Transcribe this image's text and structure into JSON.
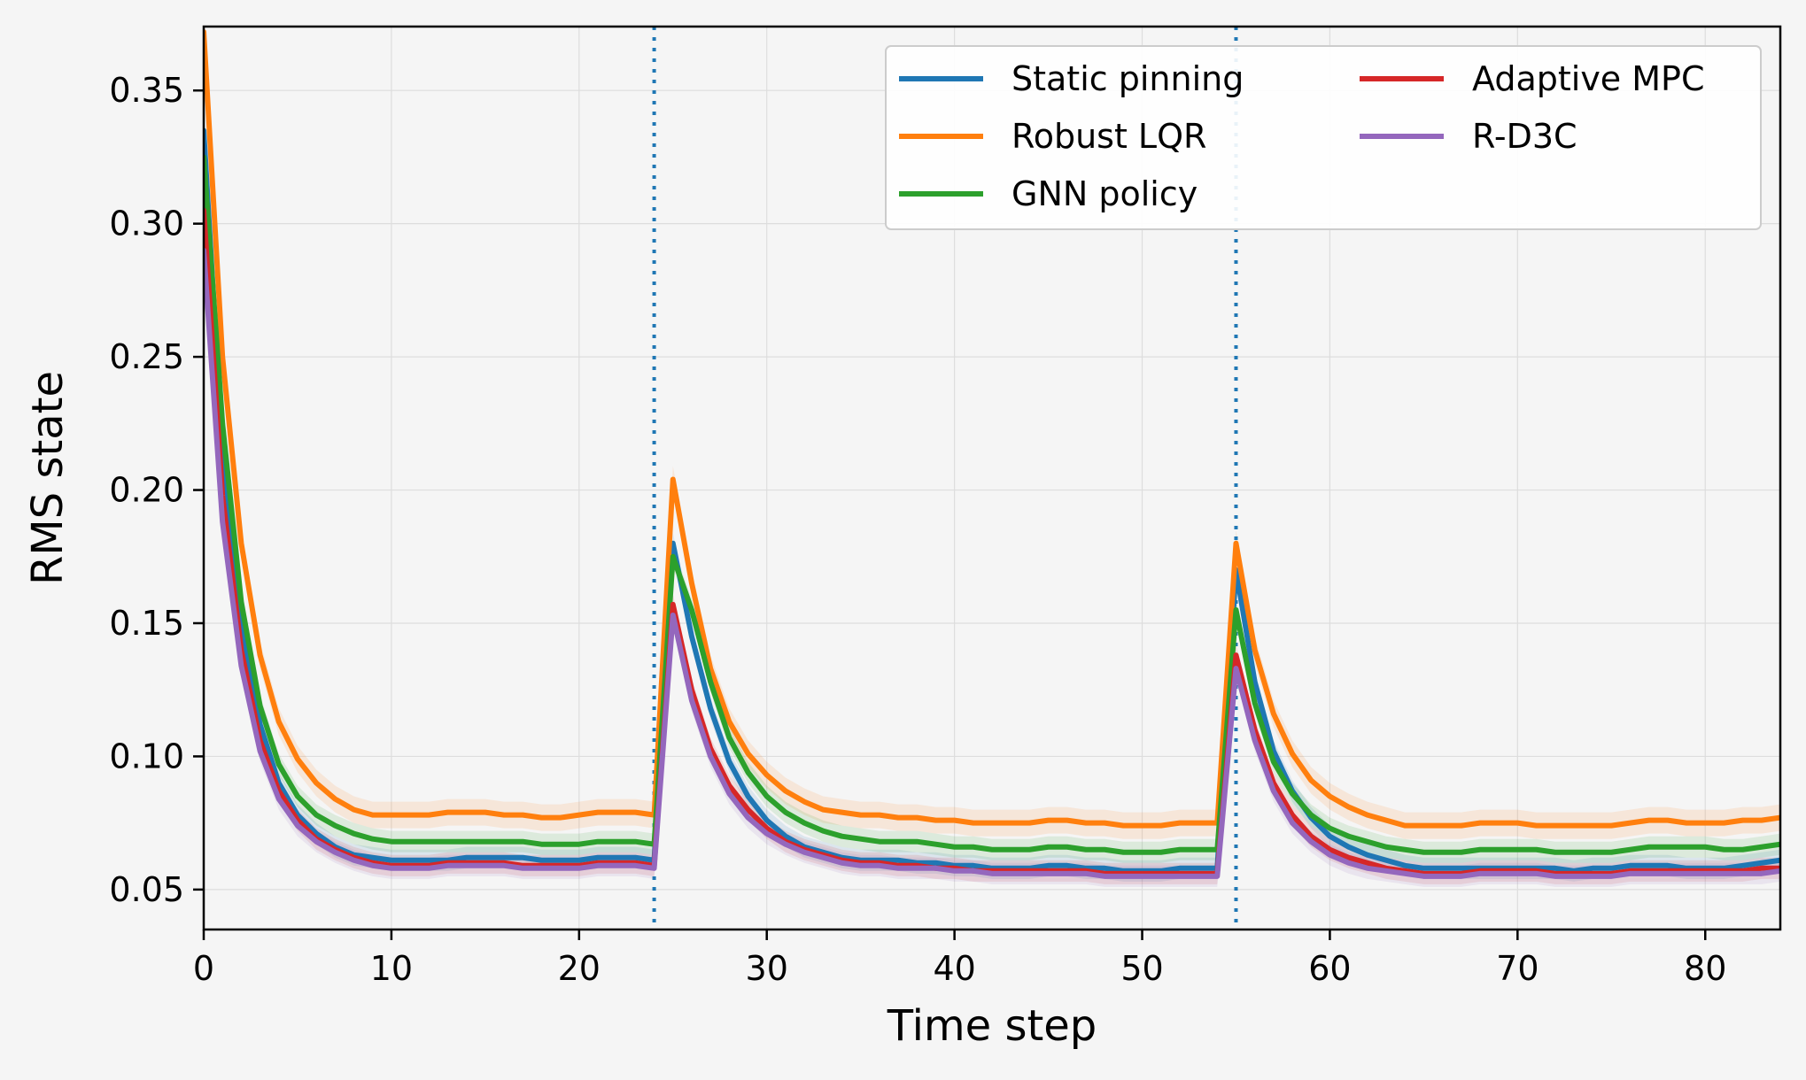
{
  "chart_data": {
    "type": "line",
    "xlabel": "Time step",
    "ylabel": "RMS state",
    "xlim": [
      0,
      84
    ],
    "ylim": [
      0.035,
      0.374
    ],
    "xticks": [
      0,
      10,
      20,
      30,
      40,
      50,
      60,
      70,
      80
    ],
    "xtick_labels": [
      "0",
      "10",
      "20",
      "30",
      "40",
      "50",
      "60",
      "70",
      "80"
    ],
    "yticks": [
      0.05,
      0.1,
      0.15,
      0.2,
      0.25,
      0.3,
      0.35
    ],
    "ytick_labels": [
      "0.05",
      "0.10",
      "0.15",
      "0.20",
      "0.25",
      "0.30",
      "0.35"
    ],
    "grid": true,
    "legend_position": "top-right",
    "legend_columns": 2,
    "vlines": [
      24,
      55
    ],
    "vline_style": "dotted",
    "vline_color": "#1f77b4",
    "series": [
      {
        "name": "Static pinning",
        "color": "#1f77b4",
        "band": 0.004,
        "x": [
          0,
          1,
          2,
          3,
          4,
          5,
          6,
          7,
          8,
          9,
          10,
          11,
          12,
          13,
          14,
          15,
          16,
          17,
          18,
          19,
          20,
          21,
          22,
          23,
          24,
          25,
          26,
          27,
          28,
          29,
          30,
          31,
          32,
          33,
          34,
          35,
          36,
          37,
          38,
          39,
          40,
          41,
          42,
          43,
          44,
          45,
          46,
          47,
          48,
          49,
          50,
          51,
          52,
          53,
          54,
          55,
          56,
          57,
          58,
          59,
          60,
          61,
          62,
          63,
          64,
          65,
          66,
          67,
          68,
          69,
          70,
          71,
          72,
          73,
          74,
          75,
          76,
          77,
          78,
          79,
          80,
          81,
          82,
          83,
          84
        ],
        "y": [
          0.335,
          0.215,
          0.15,
          0.112,
          0.09,
          0.078,
          0.071,
          0.066,
          0.063,
          0.062,
          0.061,
          0.061,
          0.061,
          0.061,
          0.062,
          0.062,
          0.062,
          0.062,
          0.061,
          0.061,
          0.061,
          0.062,
          0.062,
          0.062,
          0.061,
          0.18,
          0.145,
          0.118,
          0.098,
          0.085,
          0.076,
          0.07,
          0.066,
          0.064,
          0.062,
          0.061,
          0.061,
          0.061,
          0.06,
          0.06,
          0.059,
          0.059,
          0.058,
          0.058,
          0.058,
          0.059,
          0.059,
          0.058,
          0.058,
          0.057,
          0.057,
          0.057,
          0.058,
          0.058,
          0.058,
          0.17,
          0.128,
          0.102,
          0.087,
          0.077,
          0.07,
          0.066,
          0.063,
          0.061,
          0.059,
          0.058,
          0.058,
          0.058,
          0.058,
          0.058,
          0.058,
          0.058,
          0.058,
          0.057,
          0.058,
          0.058,
          0.059,
          0.059,
          0.059,
          0.058,
          0.058,
          0.058,
          0.059,
          0.06,
          0.061
        ]
      },
      {
        "name": "Robust LQR",
        "color": "#ff7f0e",
        "band": 0.005,
        "x": [
          0,
          1,
          2,
          3,
          4,
          5,
          6,
          7,
          8,
          9,
          10,
          11,
          12,
          13,
          14,
          15,
          16,
          17,
          18,
          19,
          20,
          21,
          22,
          23,
          24,
          25,
          26,
          27,
          28,
          29,
          30,
          31,
          32,
          33,
          34,
          35,
          36,
          37,
          38,
          39,
          40,
          41,
          42,
          43,
          44,
          45,
          46,
          47,
          48,
          49,
          50,
          51,
          52,
          53,
          54,
          55,
          56,
          57,
          58,
          59,
          60,
          61,
          62,
          63,
          64,
          65,
          66,
          67,
          68,
          69,
          70,
          71,
          72,
          73,
          74,
          75,
          76,
          77,
          78,
          79,
          80,
          81,
          82,
          83,
          84
        ],
        "y": [
          0.372,
          0.25,
          0.18,
          0.138,
          0.113,
          0.099,
          0.09,
          0.084,
          0.08,
          0.078,
          0.078,
          0.078,
          0.078,
          0.079,
          0.079,
          0.079,
          0.078,
          0.078,
          0.077,
          0.077,
          0.078,
          0.079,
          0.079,
          0.079,
          0.078,
          0.204,
          0.165,
          0.133,
          0.113,
          0.101,
          0.093,
          0.087,
          0.083,
          0.08,
          0.079,
          0.078,
          0.078,
          0.077,
          0.077,
          0.076,
          0.076,
          0.075,
          0.075,
          0.075,
          0.075,
          0.076,
          0.076,
          0.075,
          0.075,
          0.074,
          0.074,
          0.074,
          0.075,
          0.075,
          0.075,
          0.18,
          0.14,
          0.116,
          0.101,
          0.091,
          0.085,
          0.081,
          0.078,
          0.076,
          0.074,
          0.074,
          0.074,
          0.074,
          0.075,
          0.075,
          0.075,
          0.074,
          0.074,
          0.074,
          0.074,
          0.074,
          0.075,
          0.076,
          0.076,
          0.075,
          0.075,
          0.075,
          0.076,
          0.076,
          0.077
        ]
      },
      {
        "name": "GNN policy",
        "color": "#2ca02c",
        "band": 0.004,
        "x": [
          0,
          1,
          2,
          3,
          4,
          5,
          6,
          7,
          8,
          9,
          10,
          11,
          12,
          13,
          14,
          15,
          16,
          17,
          18,
          19,
          20,
          21,
          22,
          23,
          24,
          25,
          26,
          27,
          28,
          29,
          30,
          31,
          32,
          33,
          34,
          35,
          36,
          37,
          38,
          39,
          40,
          41,
          42,
          43,
          44,
          45,
          46,
          47,
          48,
          49,
          50,
          51,
          52,
          53,
          54,
          55,
          56,
          57,
          58,
          59,
          60,
          61,
          62,
          63,
          64,
          65,
          66,
          67,
          68,
          69,
          70,
          71,
          72,
          73,
          74,
          75,
          76,
          77,
          78,
          79,
          80,
          81,
          82,
          83,
          84
        ],
        "y": [
          0.325,
          0.225,
          0.158,
          0.119,
          0.097,
          0.085,
          0.078,
          0.074,
          0.071,
          0.069,
          0.068,
          0.068,
          0.068,
          0.068,
          0.068,
          0.068,
          0.068,
          0.068,
          0.067,
          0.067,
          0.067,
          0.068,
          0.068,
          0.068,
          0.067,
          0.175,
          0.155,
          0.128,
          0.107,
          0.094,
          0.085,
          0.079,
          0.075,
          0.072,
          0.07,
          0.069,
          0.068,
          0.068,
          0.068,
          0.067,
          0.066,
          0.066,
          0.065,
          0.065,
          0.065,
          0.066,
          0.066,
          0.065,
          0.065,
          0.064,
          0.064,
          0.064,
          0.065,
          0.065,
          0.065,
          0.155,
          0.12,
          0.098,
          0.086,
          0.078,
          0.073,
          0.07,
          0.068,
          0.066,
          0.065,
          0.064,
          0.064,
          0.064,
          0.065,
          0.065,
          0.065,
          0.065,
          0.064,
          0.064,
          0.064,
          0.064,
          0.065,
          0.066,
          0.066,
          0.066,
          0.066,
          0.065,
          0.065,
          0.066,
          0.067
        ]
      },
      {
        "name": "Adaptive MPC",
        "color": "#d62728",
        "band": 0.004,
        "x": [
          0,
          1,
          2,
          3,
          4,
          5,
          6,
          7,
          8,
          9,
          10,
          11,
          12,
          13,
          14,
          15,
          16,
          17,
          18,
          19,
          20,
          21,
          22,
          23,
          24,
          25,
          26,
          27,
          28,
          29,
          30,
          31,
          32,
          33,
          34,
          35,
          36,
          37,
          38,
          39,
          40,
          41,
          42,
          43,
          44,
          45,
          46,
          47,
          48,
          49,
          50,
          51,
          52,
          53,
          54,
          55,
          56,
          57,
          58,
          59,
          60,
          61,
          62,
          63,
          64,
          65,
          66,
          67,
          68,
          69,
          70,
          71,
          72,
          73,
          74,
          75,
          76,
          77,
          78,
          79,
          80,
          81,
          82,
          83,
          84
        ],
        "y": [
          0.305,
          0.198,
          0.14,
          0.106,
          0.087,
          0.076,
          0.069,
          0.065,
          0.062,
          0.06,
          0.059,
          0.059,
          0.059,
          0.06,
          0.06,
          0.06,
          0.06,
          0.059,
          0.059,
          0.059,
          0.059,
          0.06,
          0.06,
          0.06,
          0.059,
          0.157,
          0.125,
          0.103,
          0.089,
          0.08,
          0.073,
          0.068,
          0.065,
          0.063,
          0.061,
          0.06,
          0.06,
          0.059,
          0.059,
          0.058,
          0.058,
          0.057,
          0.057,
          0.057,
          0.057,
          0.057,
          0.057,
          0.057,
          0.056,
          0.056,
          0.056,
          0.056,
          0.056,
          0.056,
          0.056,
          0.138,
          0.11,
          0.09,
          0.078,
          0.07,
          0.065,
          0.062,
          0.06,
          0.058,
          0.057,
          0.056,
          0.056,
          0.056,
          0.057,
          0.057,
          0.057,
          0.057,
          0.056,
          0.056,
          0.056,
          0.056,
          0.057,
          0.057,
          0.057,
          0.057,
          0.057,
          0.057,
          0.057,
          0.058,
          0.058
        ]
      },
      {
        "name": "R-D3C",
        "color": "#9467bd",
        "band": 0.004,
        "x": [
          0,
          1,
          2,
          3,
          4,
          5,
          6,
          7,
          8,
          9,
          10,
          11,
          12,
          13,
          14,
          15,
          16,
          17,
          18,
          19,
          20,
          21,
          22,
          23,
          24,
          25,
          26,
          27,
          28,
          29,
          30,
          31,
          32,
          33,
          34,
          35,
          36,
          37,
          38,
          39,
          40,
          41,
          42,
          43,
          44,
          45,
          46,
          47,
          48,
          49,
          50,
          51,
          52,
          53,
          54,
          55,
          56,
          57,
          58,
          59,
          60,
          61,
          62,
          63,
          64,
          65,
          66,
          67,
          68,
          69,
          70,
          71,
          72,
          73,
          74,
          75,
          76,
          77,
          78,
          79,
          80,
          81,
          82,
          83,
          84
        ],
        "y": [
          0.29,
          0.188,
          0.134,
          0.102,
          0.084,
          0.074,
          0.068,
          0.064,
          0.061,
          0.059,
          0.058,
          0.058,
          0.058,
          0.059,
          0.059,
          0.059,
          0.059,
          0.058,
          0.058,
          0.058,
          0.058,
          0.059,
          0.059,
          0.059,
          0.058,
          0.153,
          0.121,
          0.1,
          0.086,
          0.077,
          0.071,
          0.067,
          0.064,
          0.062,
          0.06,
          0.059,
          0.059,
          0.058,
          0.058,
          0.058,
          0.057,
          0.057,
          0.056,
          0.056,
          0.056,
          0.056,
          0.056,
          0.056,
          0.055,
          0.055,
          0.055,
          0.055,
          0.055,
          0.055,
          0.055,
          0.133,
          0.106,
          0.087,
          0.075,
          0.068,
          0.063,
          0.06,
          0.058,
          0.057,
          0.056,
          0.055,
          0.055,
          0.055,
          0.056,
          0.056,
          0.056,
          0.056,
          0.055,
          0.055,
          0.055,
          0.055,
          0.056,
          0.056,
          0.056,
          0.056,
          0.056,
          0.056,
          0.056,
          0.056,
          0.057
        ]
      }
    ]
  }
}
